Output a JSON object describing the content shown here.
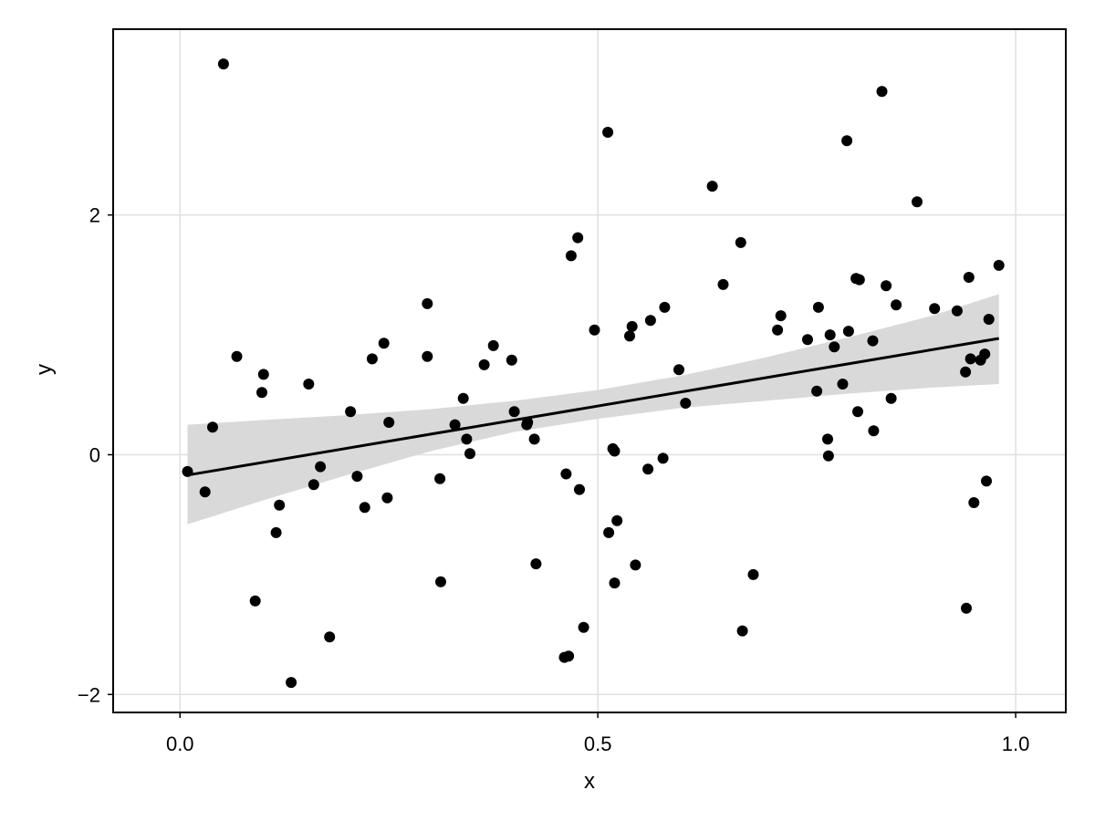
{
  "chart_data": {
    "type": "scatter",
    "title": "",
    "xlabel": "x",
    "ylabel": "y",
    "xlim": [
      -0.08,
      1.06
    ],
    "ylim": [
      -2.15,
      3.55
    ],
    "x_ticks": [
      0.0,
      0.5,
      1.0
    ],
    "x_tick_labels": [
      "0.0",
      "0.5",
      "1.0"
    ],
    "y_ticks": [
      -2,
      0,
      2
    ],
    "y_tick_labels": [
      "−2",
      "0",
      "2"
    ],
    "grid": true,
    "colors": {
      "points": "#000000",
      "band": "#d9d9d9",
      "line": "#000000",
      "grid": "#e0e0e0"
    },
    "regression": {
      "x": [
        0.009,
        0.98
      ],
      "y": [
        -0.17,
        0.97
      ],
      "band": {
        "x": [
          0.009,
          0.1,
          0.2,
          0.3,
          0.4,
          0.5,
          0.6,
          0.7,
          0.8,
          0.9,
          0.98
        ],
        "lower": [
          -0.58,
          -0.38,
          -0.17,
          0.03,
          0.19,
          0.3,
          0.39,
          0.45,
          0.51,
          0.56,
          0.59
        ],
        "upper": [
          0.25,
          0.29,
          0.33,
          0.38,
          0.45,
          0.54,
          0.66,
          0.81,
          0.98,
          1.16,
          1.34
        ]
      }
    },
    "points": {
      "x": [
        0.009,
        0.03,
        0.039,
        0.052,
        0.068,
        0.09,
        0.098,
        0.1,
        0.115,
        0.119,
        0.133,
        0.154,
        0.16,
        0.168,
        0.179,
        0.204,
        0.212,
        0.221,
        0.23,
        0.244,
        0.248,
        0.25,
        0.296,
        0.296,
        0.311,
        0.312,
        0.329,
        0.339,
        0.343,
        0.347,
        0.364,
        0.375,
        0.397,
        0.4,
        0.415,
        0.416,
        0.424,
        0.426,
        0.46,
        0.462,
        0.465,
        0.468,
        0.476,
        0.478,
        0.483,
        0.496,
        0.512,
        0.513,
        0.518,
        0.52,
        0.52,
        0.523,
        0.538,
        0.541,
        0.545,
        0.56,
        0.563,
        0.578,
        0.58,
        0.597,
        0.605,
        0.637,
        0.65,
        0.671,
        0.673,
        0.686,
        0.715,
        0.719,
        0.751,
        0.762,
        0.764,
        0.775,
        0.776,
        0.778,
        0.783,
        0.793,
        0.798,
        0.8,
        0.809,
        0.811,
        0.813,
        0.829,
        0.83,
        0.84,
        0.845,
        0.851,
        0.857,
        0.882,
        0.903,
        0.93,
        0.94,
        0.941,
        0.944,
        0.946,
        0.95,
        0.958,
        0.963,
        0.965,
        0.968,
        0.98
      ],
      "y": [
        -0.14,
        -0.31,
        0.23,
        3.26,
        0.82,
        -1.22,
        0.52,
        0.67,
        -0.65,
        -0.42,
        -1.9,
        0.59,
        -0.25,
        -0.1,
        -1.52,
        0.36,
        -0.18,
        -0.44,
        0.8,
        0.93,
        -0.36,
        0.27,
        1.26,
        0.82,
        -0.2,
        -1.06,
        0.25,
        0.47,
        0.13,
        0.01,
        0.75,
        0.91,
        0.79,
        0.36,
        0.25,
        0.27,
        0.13,
        -0.91,
        -1.69,
        -0.16,
        -1.68,
        1.66,
        1.81,
        -0.29,
        -1.44,
        1.04,
        2.69,
        -0.65,
        0.05,
        -1.07,
        0.03,
        -0.55,
        0.99,
        1.07,
        -0.92,
        -0.12,
        1.12,
        -0.03,
        1.23,
        0.71,
        0.43,
        2.24,
        1.42,
        1.77,
        -1.47,
        -1.0,
        1.04,
        1.16,
        0.96,
        0.53,
        1.23,
        0.13,
        -0.01,
        1.0,
        0.9,
        0.59,
        2.62,
        1.03,
        1.47,
        0.36,
        1.46,
        0.95,
        0.2,
        3.03,
        1.41,
        0.47,
        1.25,
        2.11,
        1.22,
        1.2,
        0.69,
        -1.28,
        1.48,
        0.8,
        -0.4,
        0.79,
        0.84,
        -0.22,
        1.13,
        1.58
      ]
    }
  }
}
